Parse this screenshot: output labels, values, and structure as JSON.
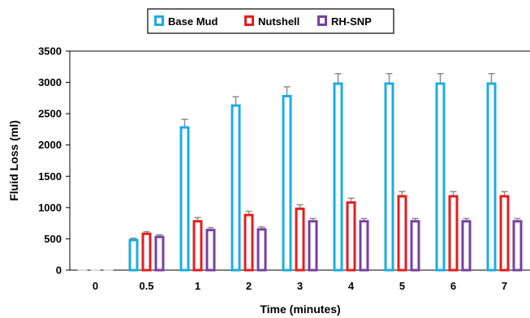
{
  "chart_data": {
    "type": "bar",
    "title": "",
    "xlabel": "Time (minutes)",
    "ylabel": "Fluid Loss (ml)",
    "categories": [
      "0",
      "0.5",
      "1",
      "2",
      "3",
      "4",
      "5",
      "6",
      "7"
    ],
    "ylim": [
      0,
      3500
    ],
    "yticks": [
      "0",
      "500",
      "1000",
      "1500",
      "2000",
      "2500",
      "3000",
      "3500"
    ],
    "grid": false,
    "legend_position": "top",
    "series": [
      {
        "name": "Base Mud",
        "color": "#1AADE4",
        "values": [
          0,
          500,
          2300,
          2650,
          2800,
          3000,
          3000,
          3000,
          3000
        ],
        "error": [
          0,
          10,
          110,
          120,
          130,
          140,
          140,
          140,
          140
        ]
      },
      {
        "name": "Nutshell",
        "color": "#E41E1E",
        "values": [
          0,
          600,
          800,
          900,
          1000,
          1100,
          1200,
          1200,
          1200
        ],
        "error": [
          0,
          15,
          40,
          40,
          45,
          50,
          55,
          55,
          55
        ]
      },
      {
        "name": "RH-SNP",
        "color": "#7A3FA0",
        "values": [
          0,
          550,
          660,
          670,
          800,
          800,
          800,
          800,
          800
        ],
        "error": [
          0,
          15,
          20,
          20,
          25,
          25,
          25,
          25,
          25
        ]
      }
    ],
    "error_bar_color": "#8C8C8C"
  }
}
